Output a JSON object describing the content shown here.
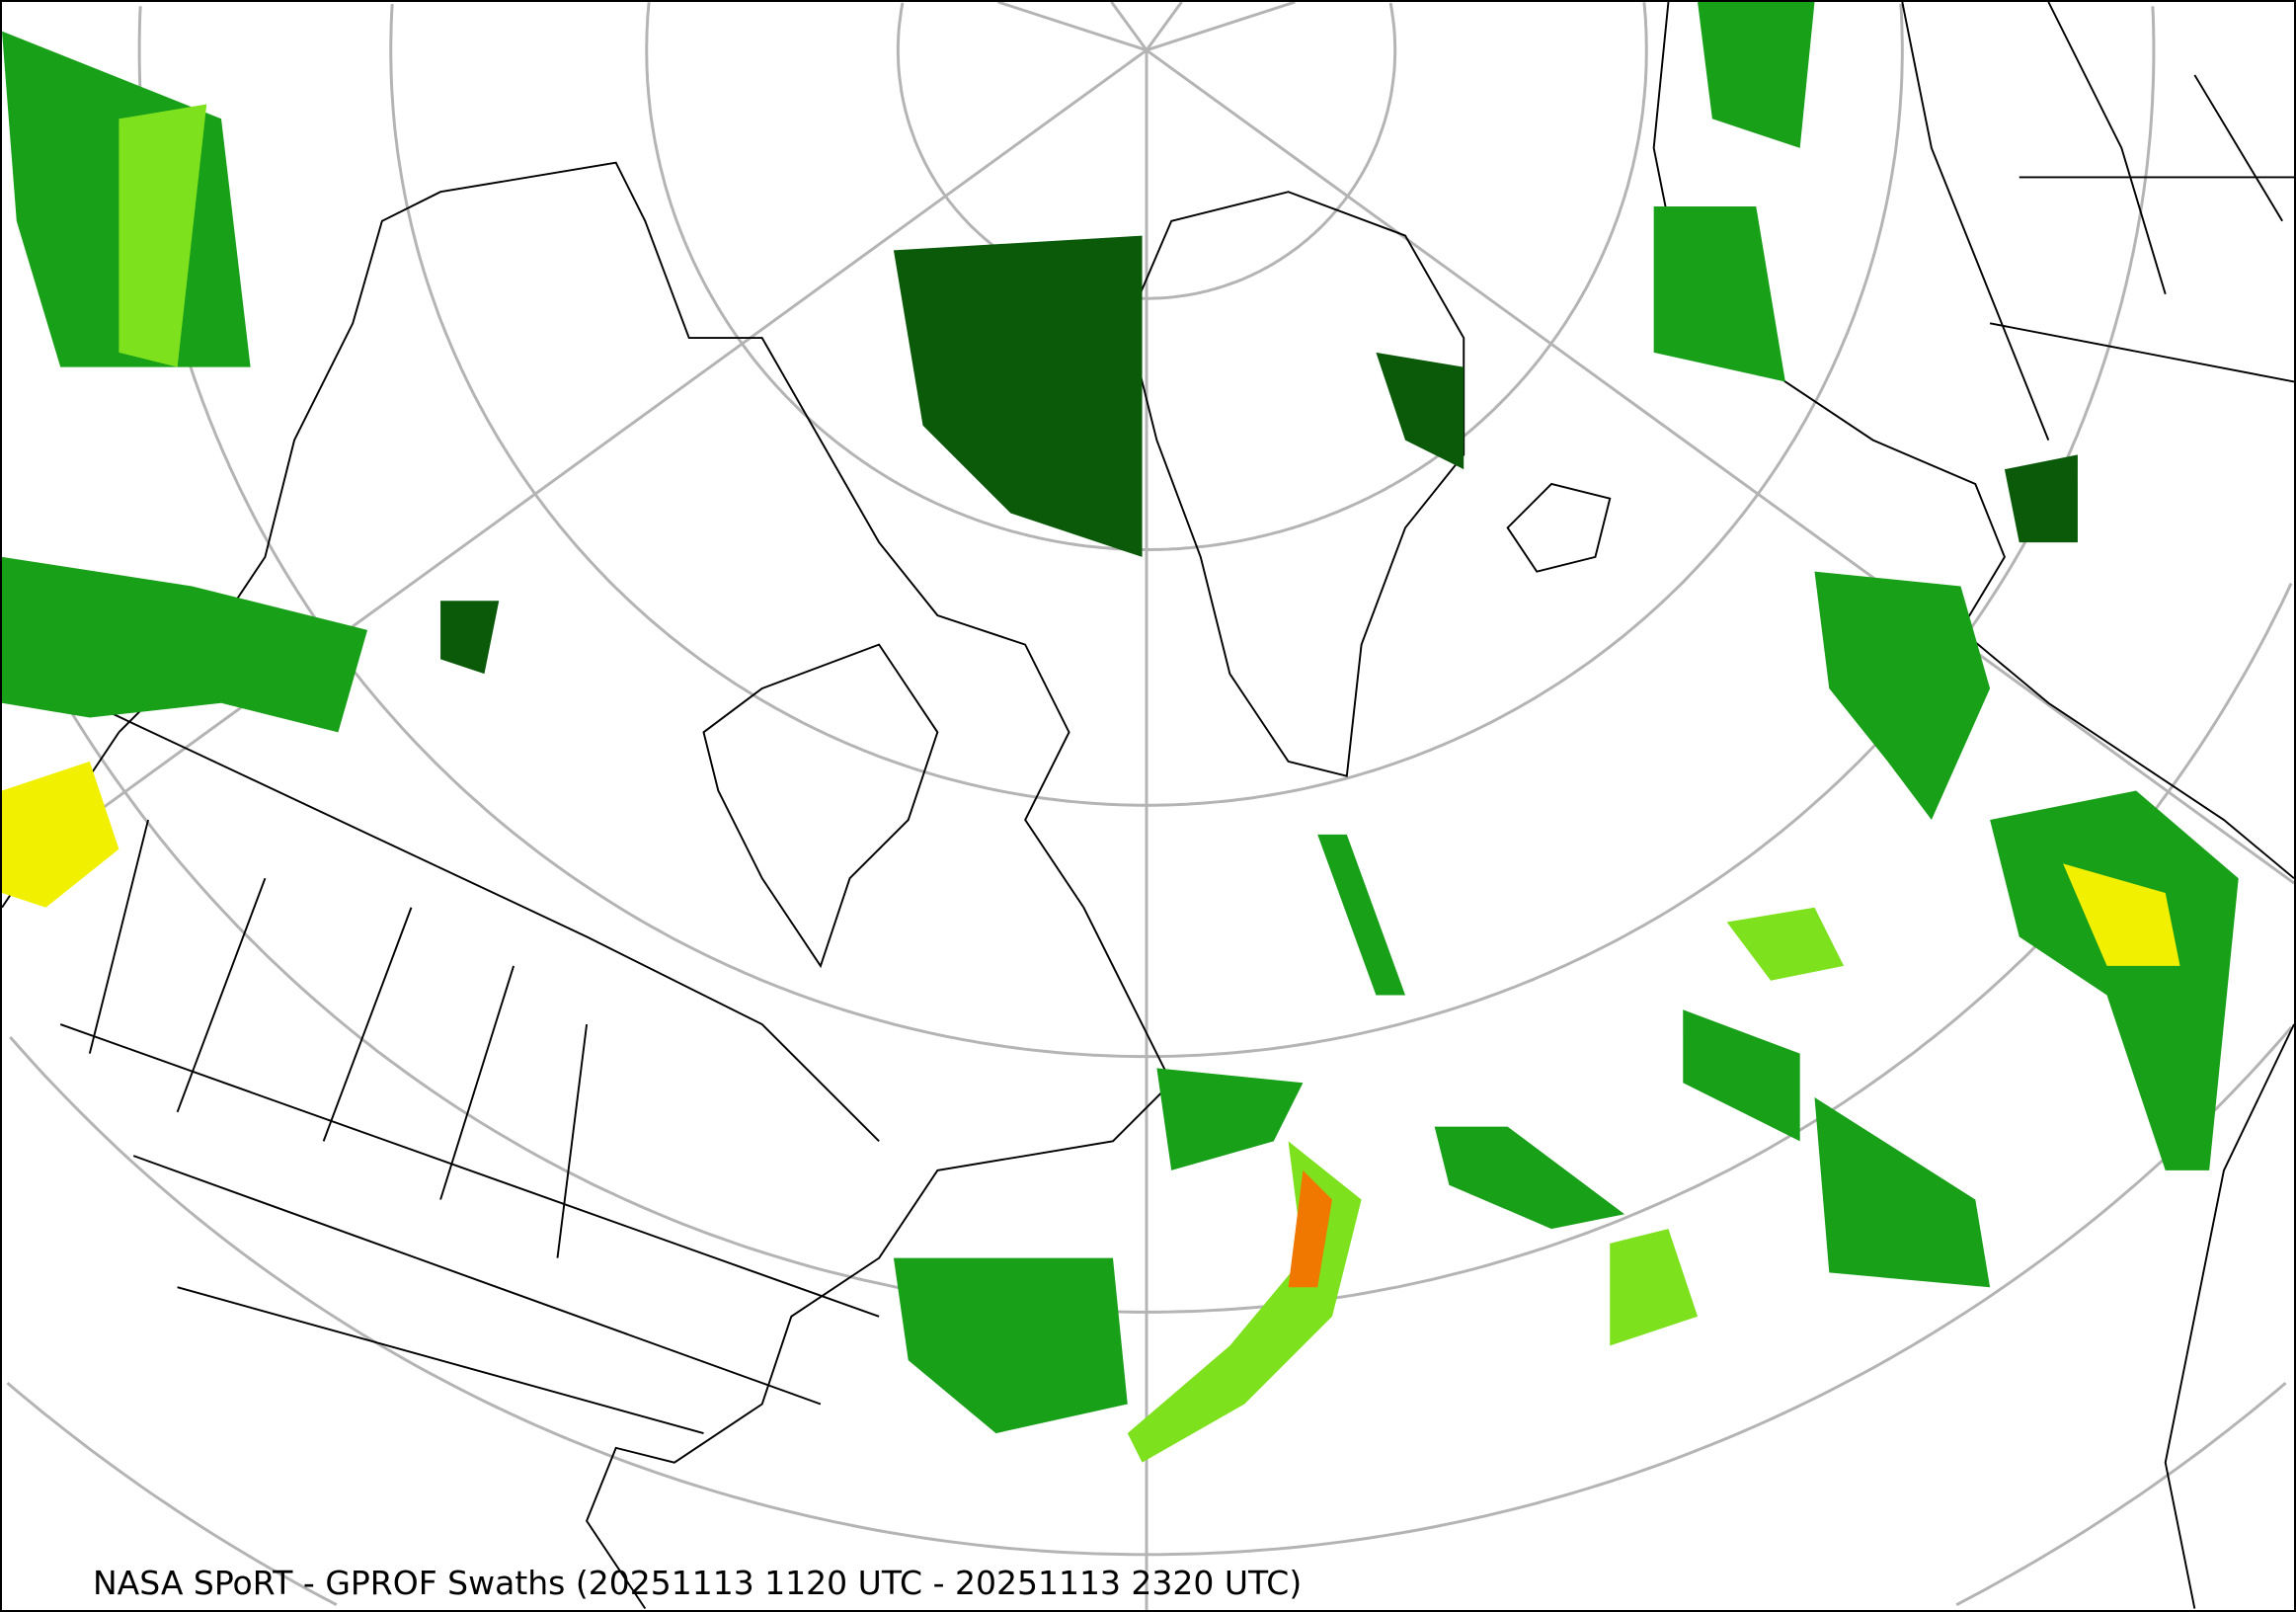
{
  "caption": "NASA SPoRT - GPROF Swaths (20251113 1120 UTC - 20251113 2320 UTC)",
  "map": {
    "projection": "north-polar-stereographic",
    "graticule_color": "#b4b4b4",
    "boundary_color": "#000000",
    "precip_colors": {
      "light": "#0a5a0a",
      "moderate": "#19a019",
      "heavy": "#7ee11e",
      "very_heavy": "#f0f000",
      "extreme": "#f07800"
    }
  }
}
